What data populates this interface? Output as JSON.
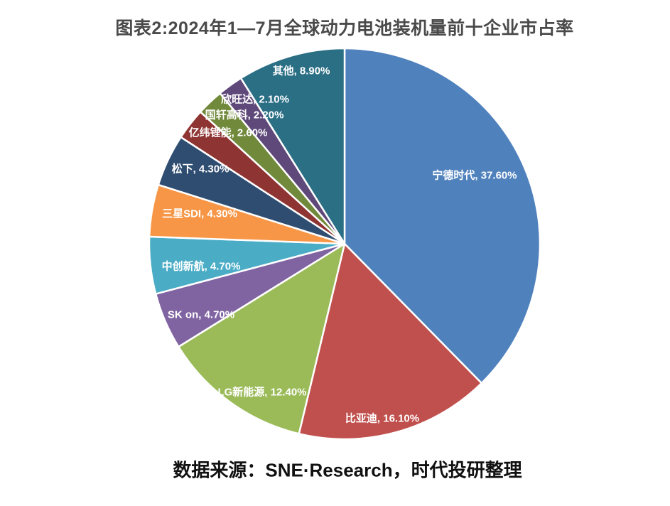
{
  "chart_data": {
    "type": "pie",
    "title": "图表2:2024年1—7月全球动力电池装机量前十企业市占率",
    "source_note": "数据来源：SNE·Research，时代投研整理",
    "unit": "%",
    "value_decimals": 2,
    "label_format": "{name}, {value}%",
    "start_angle": "12-oclock-clockwise",
    "slices": [
      {
        "name": "宁德时代",
        "value": 37.6,
        "color": "#4F81BD"
      },
      {
        "name": "比亚迪",
        "value": 16.1,
        "color": "#C0504D"
      },
      {
        "name": "LG新能源",
        "value": 12.4,
        "color": "#9BBB59"
      },
      {
        "name": "SK on",
        "value": 4.7,
        "color": "#8064A2"
      },
      {
        "name": "中创新航",
        "value": 4.7,
        "color": "#4BACC6"
      },
      {
        "name": "三星SDI",
        "value": 4.3,
        "color": "#F79646"
      },
      {
        "name": "松下",
        "value": 4.3,
        "color": "#2E4D71"
      },
      {
        "name": "亿纬锂能",
        "value": 2.6,
        "color": "#8E3432"
      },
      {
        "name": "国轩高科",
        "value": 2.2,
        "color": "#71893B"
      },
      {
        "name": "欣旺达",
        "value": 2.1,
        "color": "#5F497A"
      },
      {
        "name": "其他",
        "value": 8.9,
        "color": "#2B6F85"
      }
    ]
  }
}
